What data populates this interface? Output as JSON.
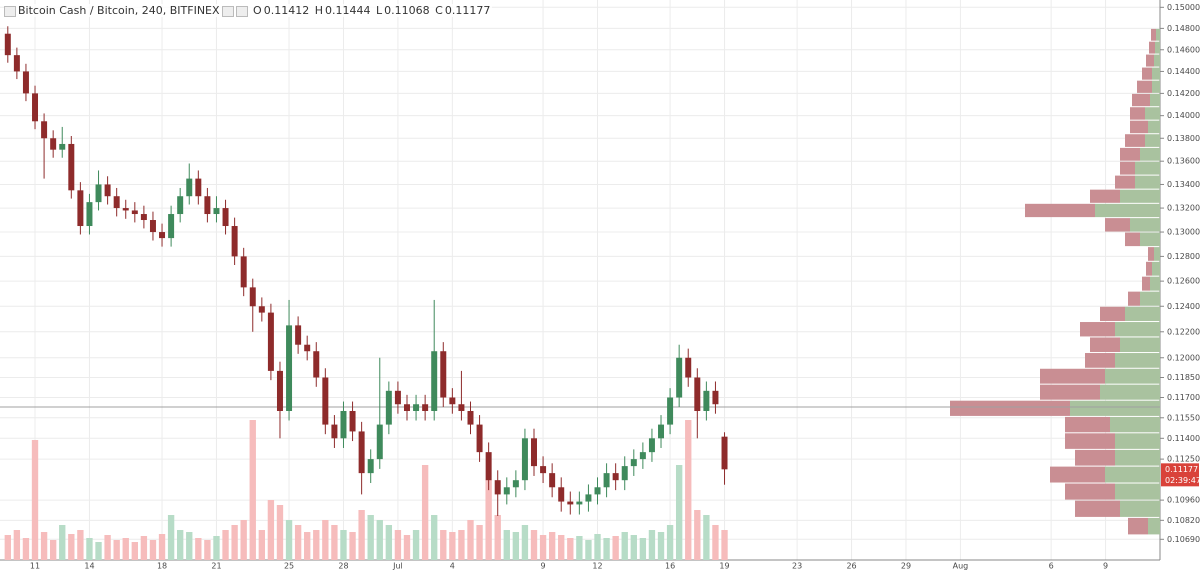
{
  "chart_data": {
    "type": "candlestick",
    "title": "Bitcoin Cash / Bitcoin, 240, BITFINEX",
    "ohlc_labels": [
      "O",
      "H",
      "L",
      "C"
    ],
    "countdown": "02:39:47",
    "log_scale": true,
    "grid": true,
    "up_color": "#3f8a5c",
    "down_color": "#8e2b2b",
    "volume_up_color": "#b7dcc7",
    "volume_down_color": "#f6bcbc",
    "price_tag_color": "#d9423a",
    "xlim": [
      -1.93,
      62
    ],
    "ylim": [
      0.1055,
      0.1507
    ],
    "vlim": [
      0,
      560
    ],
    "xticks": [
      {
        "value": 0,
        "label": "11"
      },
      {
        "value": 3,
        "label": "14"
      },
      {
        "value": 7,
        "label": "18"
      },
      {
        "value": 10,
        "label": "21"
      },
      {
        "value": 14,
        "label": "25"
      },
      {
        "value": 17,
        "label": "28"
      },
      {
        "value": 20,
        "label": "Jul"
      },
      {
        "value": 23,
        "label": "4"
      },
      {
        "value": 28,
        "label": "9"
      },
      {
        "value": 31,
        "label": "12"
      },
      {
        "value": 35,
        "label": "16"
      },
      {
        "value": 38,
        "label": "19"
      },
      {
        "value": 42,
        "label": "23"
      },
      {
        "value": 45,
        "label": "26"
      },
      {
        "value": 48,
        "label": "29"
      },
      {
        "value": 51,
        "label": "Aug"
      },
      {
        "value": 56,
        "label": "6"
      },
      {
        "value": 59,
        "label": "9"
      }
    ],
    "yticks": [
      {
        "value": 0.15,
        "label": "0.15000"
      },
      {
        "value": 0.148,
        "label": "0.14800"
      },
      {
        "value": 0.146,
        "label": "0.14600"
      },
      {
        "value": 0.144,
        "label": "0.14400"
      },
      {
        "value": 0.142,
        "label": "0.14200"
      },
      {
        "value": 0.14,
        "label": "0.14000"
      },
      {
        "value": 0.138,
        "label": "0.13800"
      },
      {
        "value": 0.136,
        "label": "0.13600"
      },
      {
        "value": 0.134,
        "label": "0.13400"
      },
      {
        "value": 0.132,
        "label": "0.13200"
      },
      {
        "value": 0.13,
        "label": "0.13000"
      },
      {
        "value": 0.128,
        "label": "0.12800"
      },
      {
        "value": 0.126,
        "label": "0.12600"
      },
      {
        "value": 0.124,
        "label": "0.12400"
      },
      {
        "value": 0.122,
        "label": "0.12200"
      },
      {
        "value": 0.12,
        "label": "0.12000"
      },
      {
        "value": 0.1185,
        "label": "0.11850"
      },
      {
        "value": 0.117,
        "label": "0.11700"
      },
      {
        "value": 0.1155,
        "label": "0.11550"
      },
      {
        "value": 0.114,
        "label": "0.11400"
      },
      {
        "value": 0.1125,
        "label": "0.11250"
      },
      {
        "value": 0.1096,
        "label": "0.10960"
      },
      {
        "value": 0.1082,
        "label": "0.10820"
      },
      {
        "value": 0.1069,
        "label": "0.10690"
      }
    ],
    "hline": 0.1163,
    "x": [
      -1.5,
      -1,
      -0.5,
      0,
      0.5,
      1,
      1.5,
      2,
      2.5,
      3,
      3.5,
      4,
      4.5,
      5,
      5.5,
      6,
      6.5,
      7,
      7.5,
      8,
      8.5,
      9,
      9.5,
      10,
      10.5,
      11,
      11.5,
      12,
      12.5,
      13,
      13.5,
      14,
      14.5,
      15,
      15.5,
      16,
      16.5,
      17,
      17.5,
      18,
      18.5,
      19,
      19.5,
      20,
      20.5,
      21,
      21.5,
      22,
      22.5,
      23,
      23.5,
      24,
      24.5,
      25,
      25.5,
      26,
      26.5,
      27,
      27.5,
      28,
      28.5,
      29,
      29.5,
      30,
      30.5,
      31,
      31.5,
      32,
      32.5,
      33,
      33.5,
      34,
      34.5,
      35,
      35.5,
      36,
      36.5,
      37,
      37.5,
      38
    ],
    "open": [
      0.1475,
      0.1455,
      0.144,
      0.142,
      0.1395,
      0.138,
      0.137,
      0.1375,
      0.1335,
      0.1305,
      0.1325,
      0.134,
      0.133,
      0.132,
      0.1318,
      0.1315,
      0.131,
      0.13,
      0.1295,
      0.1315,
      0.133,
      0.1345,
      0.133,
      0.1315,
      0.132,
      0.1305,
      0.128,
      0.1255,
      0.124,
      0.1235,
      0.119,
      0.116,
      0.1225,
      0.121,
      0.1205,
      0.1185,
      0.115,
      0.114,
      0.116,
      0.1145,
      0.1115,
      0.1125,
      0.115,
      0.1175,
      0.1165,
      0.116,
      0.1165,
      0.116,
      0.1205,
      0.117,
      0.1165,
      0.116,
      0.115,
      0.113,
      0.111,
      0.11,
      0.1105,
      0.111,
      0.114,
      0.112,
      0.1115,
      0.1105,
      0.1095,
      0.1093,
      0.1095,
      0.11,
      0.1105,
      0.1115,
      0.111,
      0.112,
      0.1125,
      0.113,
      0.114,
      0.115,
      0.117,
      0.12,
      0.1185,
      0.116,
      0.1175,
      0.11412
    ],
    "high": [
      0.1482,
      0.1462,
      0.1447,
      0.1427,
      0.1402,
      0.1387,
      0.139,
      0.1382,
      0.1342,
      0.1332,
      0.1352,
      0.1347,
      0.1337,
      0.1327,
      0.1325,
      0.1322,
      0.1317,
      0.1307,
      0.1322,
      0.1337,
      0.1358,
      0.1352,
      0.1337,
      0.133,
      0.1327,
      0.1312,
      0.1287,
      0.1262,
      0.1247,
      0.1242,
      0.1197,
      0.1245,
      0.1232,
      0.1217,
      0.1212,
      0.1192,
      0.1157,
      0.1167,
      0.1167,
      0.1152,
      0.1132,
      0.12,
      0.1182,
      0.1182,
      0.1172,
      0.1172,
      0.1172,
      0.1245,
      0.1212,
      0.1177,
      0.119,
      0.1167,
      0.1157,
      0.1137,
      0.1117,
      0.1112,
      0.1117,
      0.1147,
      0.1147,
      0.1127,
      0.1122,
      0.1112,
      0.1102,
      0.1102,
      0.1107,
      0.1112,
      0.1122,
      0.1122,
      0.1127,
      0.1132,
      0.1137,
      0.1147,
      0.1157,
      0.1177,
      0.121,
      0.1207,
      0.1192,
      0.1182,
      0.1182,
      0.11444
    ],
    "low": [
      0.1448,
      0.1433,
      0.1413,
      0.1388,
      0.1345,
      0.1363,
      0.1363,
      0.1328,
      0.1298,
      0.1298,
      0.1318,
      0.1323,
      0.1313,
      0.1311,
      0.1308,
      0.1303,
      0.1293,
      0.1288,
      0.1288,
      0.1308,
      0.1323,
      0.1323,
      0.1308,
      0.1308,
      0.1298,
      0.1273,
      0.1248,
      0.122,
      0.1228,
      0.1183,
      0.114,
      0.1153,
      0.1203,
      0.1198,
      0.1178,
      0.1143,
      0.1133,
      0.1133,
      0.1138,
      0.11,
      0.1108,
      0.1118,
      0.1143,
      0.1158,
      0.1153,
      0.1153,
      0.1153,
      0.1153,
      0.1163,
      0.1158,
      0.1153,
      0.1143,
      0.1123,
      0.1103,
      0.1085,
      0.1093,
      0.1098,
      0.1103,
      0.1113,
      0.1108,
      0.1098,
      0.1088,
      0.1086,
      0.1086,
      0.1088,
      0.1093,
      0.1098,
      0.1103,
      0.1103,
      0.1113,
      0.1118,
      0.1123,
      0.1133,
      0.1143,
      0.1163,
      0.1178,
      0.114,
      0.1153,
      0.1158,
      0.11068
    ],
    "close": [
      0.1455,
      0.144,
      0.142,
      0.1395,
      0.138,
      0.137,
      0.1375,
      0.1335,
      0.1305,
      0.1325,
      0.134,
      0.133,
      0.132,
      0.1318,
      0.1315,
      0.131,
      0.13,
      0.1295,
      0.1315,
      0.133,
      0.1345,
      0.133,
      0.1315,
      0.132,
      0.1305,
      0.128,
      0.1255,
      0.124,
      0.1235,
      0.119,
      0.116,
      0.1225,
      0.121,
      0.1205,
      0.1185,
      0.115,
      0.114,
      0.116,
      0.1145,
      0.1115,
      0.1125,
      0.115,
      0.1175,
      0.1165,
      0.116,
      0.1165,
      0.116,
      0.1205,
      0.117,
      0.1165,
      0.116,
      0.115,
      0.113,
      0.111,
      0.11,
      0.1105,
      0.111,
      0.114,
      0.112,
      0.1115,
      0.1105,
      0.1095,
      0.1093,
      0.1095,
      0.11,
      0.1105,
      0.1115,
      0.111,
      0.112,
      0.1125,
      0.113,
      0.114,
      0.115,
      0.117,
      0.12,
      0.1185,
      0.116,
      0.1175,
      0.1165,
      0.11177
    ],
    "volume": [
      25,
      30,
      22,
      120,
      28,
      20,
      35,
      26,
      30,
      22,
      18,
      25,
      20,
      22,
      18,
      24,
      20,
      26,
      45,
      30,
      28,
      22,
      20,
      24,
      30,
      35,
      40,
      140,
      30,
      60,
      55,
      40,
      35,
      28,
      30,
      40,
      35,
      30,
      28,
      50,
      45,
      40,
      35,
      30,
      25,
      30,
      95,
      45,
      30,
      28,
      30,
      40,
      35,
      80,
      45,
      30,
      28,
      35,
      30,
      25,
      28,
      25,
      22,
      24,
      20,
      26,
      22,
      24,
      28,
      25,
      22,
      30,
      28,
      35,
      95,
      140,
      50,
      45,
      35,
      30
    ],
    "profile": {
      "xlim": [
        0,
        1160
      ],
      "up_color": "#a9c29f",
      "down_color": "#c98e93",
      "bins": [
        0.106,
        0.1072,
        0.1084,
        0.1096,
        0.1108,
        0.112,
        0.1132,
        0.1144,
        0.1156,
        0.1168,
        0.118,
        0.1192,
        0.1204,
        0.1216,
        0.1228,
        0.124,
        0.1252,
        0.1264,
        0.1276,
        0.1288,
        0.13,
        0.1312,
        0.1324,
        0.1336,
        0.1348,
        0.136,
        0.1372,
        0.1384,
        0.1396,
        0.1408,
        0.142,
        0.1432,
        0.1444,
        0.1456,
        0.1468,
        0.148
      ],
      "up": [
        0,
        12,
        40,
        45,
        55,
        45,
        45,
        50,
        90,
        60,
        55,
        45,
        40,
        45,
        35,
        20,
        10,
        8,
        6,
        20,
        30,
        65,
        40,
        25,
        25,
        20,
        15,
        12,
        15,
        10,
        8,
        8,
        6,
        5,
        4
      ],
      "down": [
        0,
        20,
        45,
        50,
        55,
        40,
        50,
        45,
        120,
        60,
        65,
        30,
        30,
        35,
        25,
        12,
        8,
        6,
        6,
        15,
        25,
        70,
        30,
        20,
        15,
        20,
        20,
        18,
        15,
        18,
        15,
        10,
        8,
        6,
        5
      ]
    }
  }
}
